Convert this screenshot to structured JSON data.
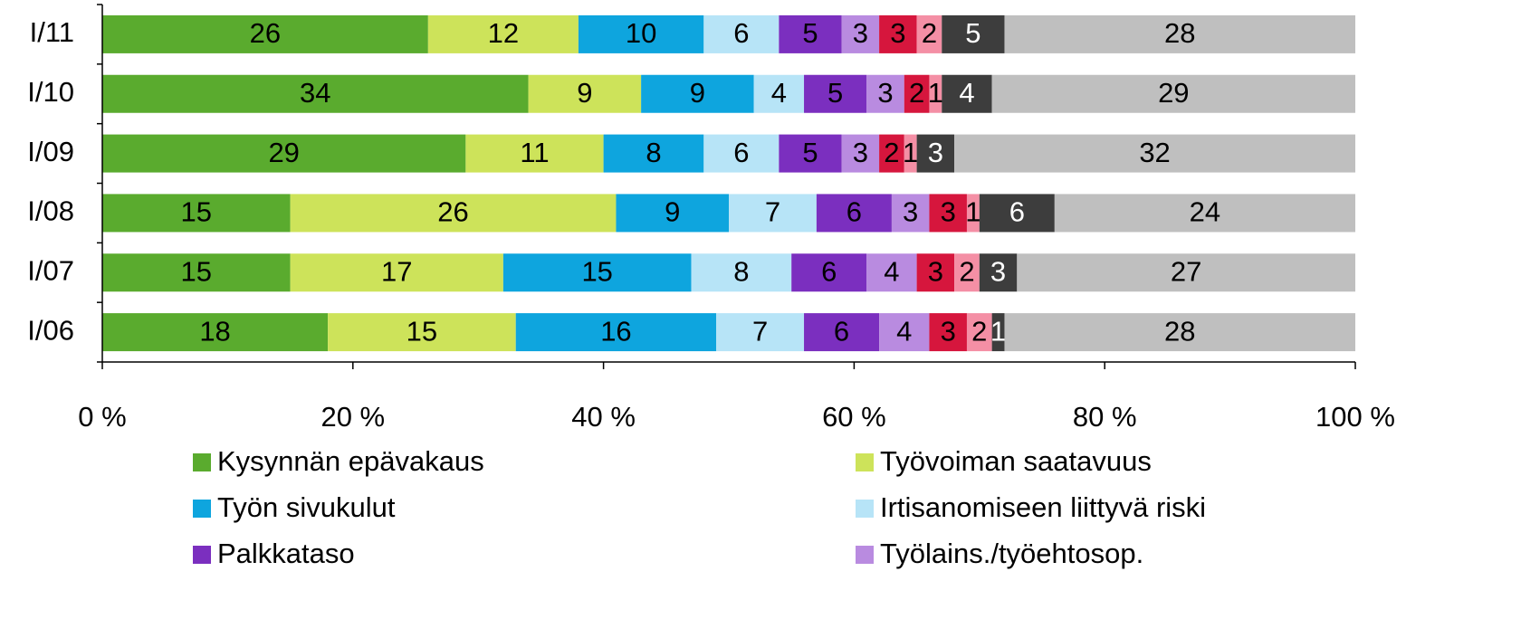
{
  "chart_data": {
    "type": "stacked-barh",
    "categories": [
      "I/11",
      "I/10",
      "I/09",
      "I/08",
      "I/07",
      "I/06"
    ],
    "series": [
      {
        "name": "Kysynnän epävakaus",
        "color": "#5aab2e",
        "values": [
          26,
          34,
          29,
          15,
          15,
          18
        ]
      },
      {
        "name": "Työvoiman saatavuus",
        "color": "#cde35a",
        "values": [
          12,
          9,
          11,
          26,
          17,
          15
        ]
      },
      {
        "name": "Työn sivukulut",
        "color": "#0ea5de",
        "values": [
          10,
          9,
          8,
          9,
          15,
          16
        ]
      },
      {
        "name": "Irtisanomiseen liittyvä riski",
        "color": "#b7e4f7",
        "values": [
          6,
          4,
          6,
          7,
          8,
          7
        ]
      },
      {
        "name": "Palkkataso",
        "color": "#7b2fbf",
        "values": [
          5,
          5,
          5,
          6,
          6,
          6
        ]
      },
      {
        "name": "Työlains./työehtosop.",
        "color": "#b98be0",
        "values": [
          3,
          3,
          3,
          3,
          4,
          4
        ]
      },
      {
        "color": "#d6163d",
        "values": [
          3,
          2,
          2,
          3,
          3,
          3
        ]
      },
      {
        "color": "#f48fa5",
        "values": [
          2,
          1,
          1,
          1,
          2,
          2
        ]
      },
      {
        "color": "#3d3d3d",
        "values": [
          5,
          4,
          3,
          6,
          3,
          1
        ]
      },
      {
        "color": "#bfbfbf",
        "values": [
          28,
          29,
          32,
          24,
          27,
          28
        ]
      }
    ],
    "xlim": [
      0,
      100
    ],
    "xticks": [
      {
        "value": 0,
        "label": "0 %"
      },
      {
        "value": 20,
        "label": "20 %"
      },
      {
        "value": 40,
        "label": "40 %"
      },
      {
        "value": 60,
        "label": "60 %"
      },
      {
        "value": 80,
        "label": "80 %"
      },
      {
        "value": 100,
        "label": "100 %"
      }
    ]
  }
}
